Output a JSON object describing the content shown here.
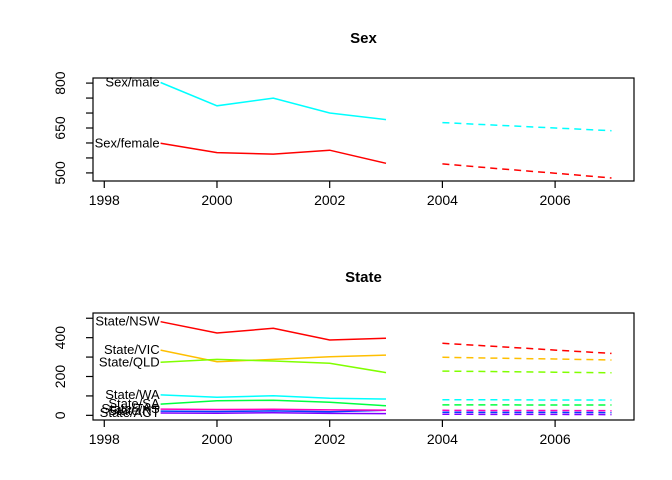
{
  "page": {
    "background": "#ffffff",
    "text_color": "#000000"
  },
  "chart_data": [
    {
      "type": "line",
      "title": "Sex",
      "xlabel": "",
      "ylabel": "",
      "grid": false,
      "legend_position": "labels-at-line-start",
      "xlim": [
        1997.8,
        2007.4
      ],
      "ylim": [
        473,
        817
      ],
      "x_ticks": {
        "values": [
          1998,
          2000,
          2002,
          2004,
          2006
        ],
        "labels": [
          "1998",
          "2000",
          "2002",
          "2004",
          "2006"
        ]
      },
      "y_ticks": {
        "values": [
          500,
          550,
          600,
          650,
          700,
          750,
          800
        ],
        "labels": [
          "500",
          "",
          "",
          "650",
          "",
          "",
          "800"
        ]
      },
      "series": [
        {
          "name": "Sex/male",
          "color": "#00FFFF",
          "style": "solid",
          "x": [
            1999,
            2000,
            2001,
            2002,
            2003
          ],
          "y": [
            802,
            724,
            750,
            700,
            678
          ],
          "label": {
            "text": "Sex/male",
            "x": 1999,
            "y": 802
          }
        },
        {
          "name": "Sex/male-forecast",
          "color": "#00FFFF",
          "style": "dashed",
          "x": [
            2004,
            2005,
            2006,
            2007
          ],
          "y": [
            668,
            659,
            650,
            641
          ]
        },
        {
          "name": "Sex/female",
          "color": "#FF0000",
          "style": "solid",
          "x": [
            1999,
            2000,
            2001,
            2002,
            2003
          ],
          "y": [
            599,
            568,
            563,
            576,
            532
          ],
          "label": {
            "text": "Sex/female",
            "x": 1999,
            "y": 599
          }
        },
        {
          "name": "Sex/female-forecast",
          "color": "#FF0000",
          "style": "dashed",
          "x": [
            2004,
            2005,
            2006,
            2007
          ],
          "y": [
            530,
            514,
            499,
            483
          ]
        }
      ]
    },
    {
      "type": "line",
      "title": "State",
      "xlabel": "",
      "ylabel": "",
      "grid": false,
      "legend_position": "labels-at-line-start",
      "xlim": [
        1997.8,
        2007.4
      ],
      "ylim": [
        -24,
        527
      ],
      "x_ticks": {
        "values": [
          1998,
          2000,
          2002,
          2004,
          2006
        ],
        "labels": [
          "1998",
          "2000",
          "2002",
          "2004",
          "2006"
        ]
      },
      "y_ticks": {
        "values": [
          0,
          100,
          200,
          300,
          400,
          500
        ],
        "labels": [
          "0",
          "",
          "200",
          "",
          "400",
          ""
        ]
      },
      "series": [
        {
          "name": "State/NSW",
          "color": "#FF0000",
          "style": "solid",
          "x": [
            1999,
            2000,
            2001,
            2002,
            2003
          ],
          "y": [
            482,
            424,
            448,
            388,
            397
          ],
          "label": {
            "text": "State/NSW",
            "x": 1999,
            "y": 482
          }
        },
        {
          "name": "State/NSW-forecast",
          "color": "#FF0000",
          "style": "dashed",
          "x": [
            2004,
            2005,
            2006,
            2007
          ],
          "y": [
            371,
            354,
            336,
            319
          ]
        },
        {
          "name": "State/VIC",
          "color": "#FFBF00",
          "style": "solid",
          "x": [
            1999,
            2000,
            2001,
            2002,
            2003
          ],
          "y": [
            336,
            276,
            288,
            302,
            310
          ],
          "label": {
            "text": "State/VIC",
            "x": 1999,
            "y": 336
          }
        },
        {
          "name": "State/VIC-forecast",
          "color": "#FFBF00",
          "style": "dashed",
          "x": [
            2004,
            2005,
            2006,
            2007
          ],
          "y": [
            299,
            294,
            290,
            285
          ]
        },
        {
          "name": "State/QLD",
          "color": "#80FF00",
          "style": "solid",
          "x": [
            1999,
            2000,
            2001,
            2002,
            2003
          ],
          "y": [
            273,
            288,
            280,
            268,
            220
          ],
          "label": {
            "text": "State/QLD",
            "x": 1999,
            "y": 273
          }
        },
        {
          "name": "State/QLD-forecast",
          "color": "#80FF00",
          "style": "dashed",
          "x": [
            2004,
            2005,
            2006,
            2007
          ],
          "y": [
            228,
            225,
            222,
            219
          ]
        },
        {
          "name": "State/SA",
          "color": "#00FF40",
          "style": "solid",
          "x": [
            1999,
            2000,
            2001,
            2002,
            2003
          ],
          "y": [
            58,
            75,
            78,
            67,
            49
          ],
          "label": {
            "text": "State/SA",
            "x": 1999,
            "y": 58
          }
        },
        {
          "name": "State/SA-forecast",
          "color": "#00FF40",
          "style": "dashed",
          "x": [
            2004,
            2005,
            2006,
            2007
          ],
          "y": [
            54,
            54,
            53,
            53
          ]
        },
        {
          "name": "State/WA",
          "color": "#00FFFF",
          "style": "solid",
          "x": [
            1999,
            2000,
            2001,
            2002,
            2003
          ],
          "y": [
            105,
            93,
            101,
            88,
            84
          ],
          "label": {
            "text": "State/WA",
            "x": 1999,
            "y": 105
          }
        },
        {
          "name": "State/WA-forecast",
          "color": "#00FFFF",
          "style": "dashed",
          "x": [
            2004,
            2005,
            2006,
            2007
          ],
          "y": [
            80,
            80,
            79,
            79
          ]
        },
        {
          "name": "State/NT",
          "color": "#0040FF",
          "style": "solid",
          "x": [
            1999,
            2000,
            2001,
            2002,
            2003
          ],
          "y": [
            22,
            20,
            23,
            18,
            26
          ],
          "label": {
            "text": "State/NT",
            "x": 1999,
            "y": 22
          }
        },
        {
          "name": "State/NT-forecast",
          "color": "#0040FF",
          "style": "dashed",
          "x": [
            2004,
            2005,
            2006,
            2007
          ],
          "y": [
            16,
            15,
            15,
            14
          ]
        },
        {
          "name": "State/ACT",
          "color": "#8000FF",
          "style": "solid",
          "x": [
            1999,
            2000,
            2001,
            2002,
            2003
          ],
          "y": [
            12,
            11,
            13,
            10,
            9
          ],
          "label": {
            "text": "State/ACT",
            "x": 1999,
            "y": 12
          }
        },
        {
          "name": "State/ACT-forecast",
          "color": "#8000FF",
          "style": "dashed",
          "x": [
            2004,
            2005,
            2006,
            2007
          ],
          "y": [
            6,
            5,
            5,
            4
          ]
        },
        {
          "name": "State/TAS",
          "color": "#FF00BF",
          "style": "solid",
          "x": [
            1999,
            2000,
            2001,
            2002,
            2003
          ],
          "y": [
            32,
            30,
            31,
            28,
            27
          ],
          "label": {
            "text": "State/TAS",
            "x": 1999,
            "y": 32
          }
        },
        {
          "name": "State/TAS-forecast",
          "color": "#FF00BF",
          "style": "dashed",
          "x": [
            2004,
            2005,
            2006,
            2007
          ],
          "y": [
            26,
            25,
            25,
            24
          ]
        }
      ]
    }
  ]
}
